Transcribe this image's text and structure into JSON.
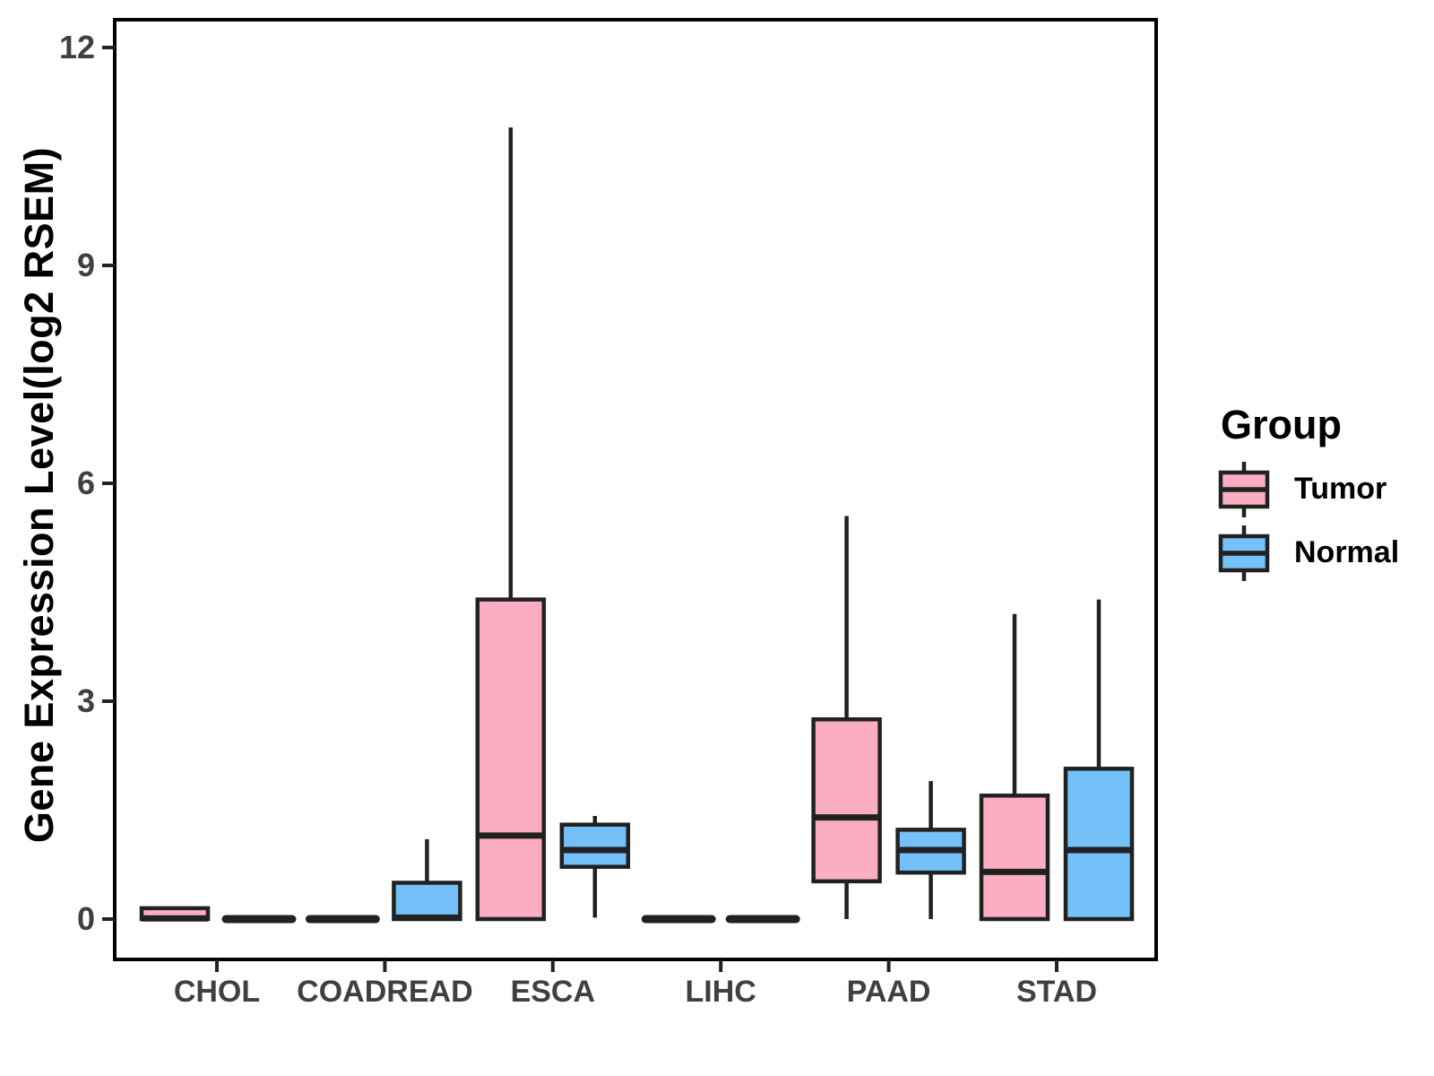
{
  "chart_data": {
    "type": "boxplot",
    "title": "",
    "ylabel": "Gene Expression Level(log2 RSEM)",
    "xlabel": "",
    "categories": [
      "CHOL",
      "COADREAD",
      "ESCA",
      "LIHC",
      "PAAD",
      "STAD"
    ],
    "yticks": [
      0,
      3,
      6,
      9,
      12
    ],
    "ylim": [
      -0.6,
      12.4
    ],
    "grid": false,
    "legend": {
      "title": "Group",
      "position": "right",
      "entries": [
        {
          "label": "Tumor",
          "color": "#FBAEC2"
        },
        {
          "label": "Normal",
          "color": "#74C0F8"
        }
      ]
    },
    "series": [
      {
        "name": "Tumor",
        "color": "#FBAEC2",
        "boxes": [
          {
            "category": "CHOL",
            "low": 0,
            "q1": 0,
            "median": 0.01,
            "q3": 0.15,
            "high": 0.15
          },
          {
            "category": "COADREAD",
            "low": 0,
            "q1": 0,
            "median": 0,
            "q3": 0,
            "high": 0
          },
          {
            "category": "ESCA",
            "low": 0,
            "q1": 0,
            "median": 1.15,
            "q3": 4.4,
            "high": 10.9
          },
          {
            "category": "LIHC",
            "low": 0,
            "q1": 0,
            "median": 0,
            "q3": 0,
            "high": 0
          },
          {
            "category": "PAAD",
            "low": 0,
            "q1": 0.52,
            "median": 1.4,
            "q3": 2.75,
            "high": 5.55
          },
          {
            "category": "STAD",
            "low": 0,
            "q1": 0,
            "median": 0.65,
            "q3": 1.7,
            "high": 4.2
          }
        ]
      },
      {
        "name": "Normal",
        "color": "#74C0F8",
        "boxes": [
          {
            "category": "CHOL",
            "low": 0,
            "q1": 0,
            "median": 0,
            "q3": 0,
            "high": 0
          },
          {
            "category": "COADREAD",
            "low": 0,
            "q1": 0,
            "median": 0.02,
            "q3": 0.5,
            "high": 1.1
          },
          {
            "category": "ESCA",
            "low": 0.02,
            "q1": 0.72,
            "median": 0.95,
            "q3": 1.3,
            "high": 1.42
          },
          {
            "category": "LIHC",
            "low": 0,
            "q1": 0,
            "median": 0,
            "q3": 0,
            "high": 0
          },
          {
            "category": "PAAD",
            "low": 0,
            "q1": 0.64,
            "median": 0.95,
            "q3": 1.23,
            "high": 1.9
          },
          {
            "category": "STAD",
            "low": 0,
            "q1": 0,
            "median": 0.95,
            "q3": 2.07,
            "high": 4.4
          }
        ]
      }
    ],
    "styles": {
      "box_border_color": "#212121",
      "panel_border_color": "#000000",
      "tick_label_color": "#404040",
      "background_color": "#ffffff"
    }
  }
}
